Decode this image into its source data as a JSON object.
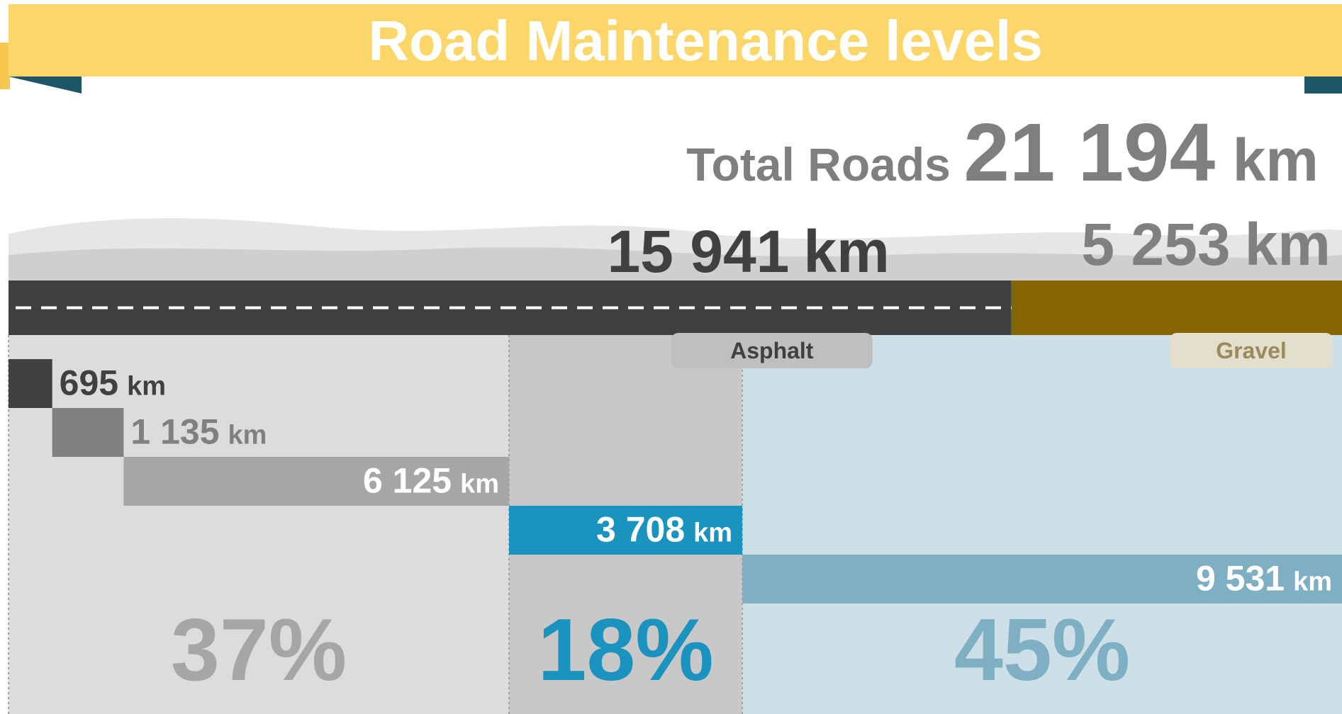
{
  "chart_data": {
    "type": "waterfall",
    "title": "Road  Maintenance levels",
    "total_label": "Total Roads",
    "total_text": "21 194",
    "unit": "km",
    "surface": {
      "categories": [
        "Asphalt",
        "Gravel"
      ],
      "values": [
        15941,
        5253
      ],
      "value_labels": [
        "15 941",
        "5 253"
      ],
      "colors": [
        "#404040",
        "#856500"
      ]
    },
    "levels": {
      "values": [
        695,
        1135,
        6125,
        3708,
        9531
      ],
      "value_labels": [
        "695",
        "1 135",
        "6 125",
        "3 708",
        "9 531"
      ],
      "colors": [
        "#404040",
        "#808080",
        "#a6a6a6",
        "#1a93be",
        "#7eafc2"
      ]
    },
    "shares": [
      "37%",
      "18%",
      "45%"
    ]
  }
}
